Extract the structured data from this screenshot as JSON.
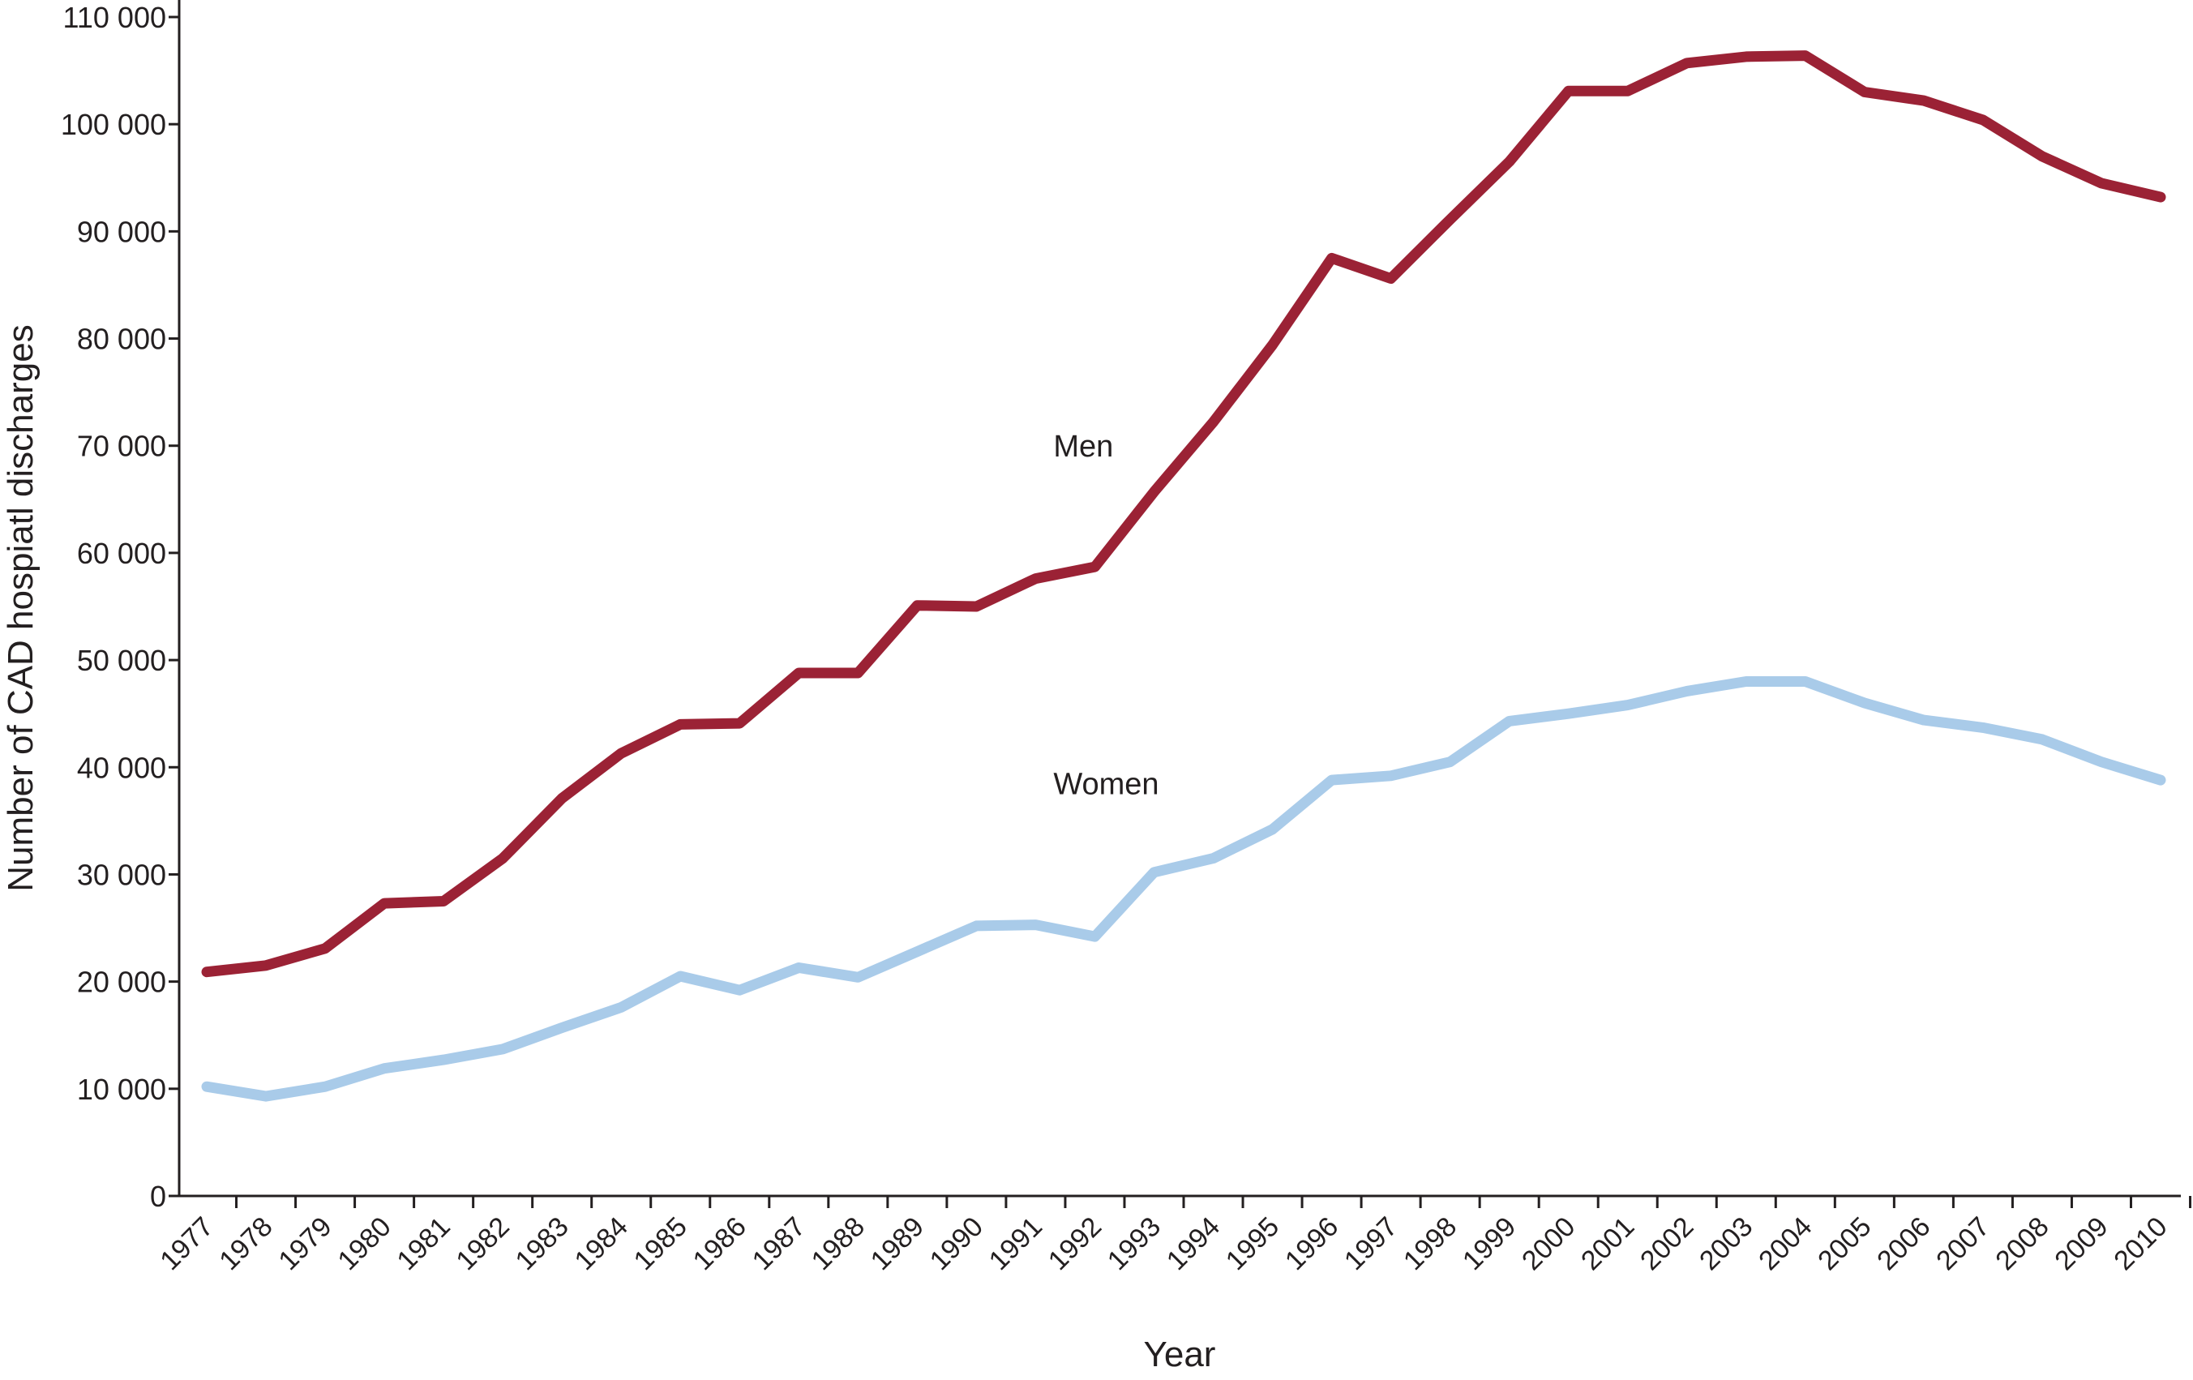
{
  "chart_data": {
    "type": "line",
    "title": "",
    "xlabel": "Year",
    "ylabel": "Number of CAD hospiatl discharges",
    "ylim": [
      0,
      110000
    ],
    "yticks": [
      0,
      10000,
      20000,
      30000,
      40000,
      50000,
      60000,
      70000,
      80000,
      90000,
      100000,
      110000
    ],
    "ytick_labels": [
      "0",
      "10 000",
      "20 000",
      "30 000",
      "40 000",
      "50 000",
      "60 000",
      "70 000",
      "80 000",
      "90 000",
      "100 000",
      "110 000"
    ],
    "grid": false,
    "x": [
      1977,
      1978,
      1979,
      1980,
      1981,
      1982,
      1983,
      1984,
      1985,
      1986,
      1987,
      1988,
      1989,
      1990,
      1991,
      1992,
      1993,
      1994,
      1995,
      1996,
      1997,
      1998,
      1999,
      2000,
      2001,
      2002,
      2003,
      2004,
      2005,
      2006,
      2007,
      2008,
      2009,
      2010
    ],
    "series": [
      {
        "name": "Men",
        "color": "#9b2235",
        "values": [
          20900,
          21500,
          23100,
          27300,
          27500,
          31500,
          37100,
          41300,
          44000,
          44100,
          48800,
          48800,
          55100,
          55000,
          57600,
          58700,
          65700,
          72200,
          79400,
          87500,
          85600,
          91100,
          96500,
          103100,
          103100,
          105700,
          106300,
          106400,
          103000,
          102200,
          100400,
          97000,
          94500,
          93200
        ],
        "label_position": {
          "x": 1991.3,
          "y": 69000
        }
      },
      {
        "name": "Women",
        "color": "#a9cbe9",
        "values": [
          10200,
          9300,
          10200,
          11900,
          12700,
          13700,
          15700,
          17600,
          20500,
          19200,
          21300,
          20400,
          22800,
          25200,
          25300,
          24200,
          30200,
          31500,
          34200,
          38800,
          39200,
          40500,
          44300,
          45000,
          45800,
          47100,
          48000,
          48000,
          46000,
          44400,
          43700,
          42600,
          40500,
          38800
        ],
        "label_position": {
          "x": 1991.3,
          "y": 37500
        }
      }
    ]
  }
}
